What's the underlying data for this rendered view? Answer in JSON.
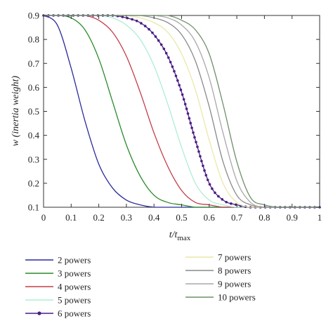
{
  "chart_data": {
    "type": "line",
    "title": "",
    "xlabel": {
      "main": "t/t",
      "sub": "max"
    },
    "ylabel": "w (inertia weight)",
    "xlim": [
      0,
      1
    ],
    "ylim": [
      0.1,
      0.9
    ],
    "x_ticks": [
      "0",
      "0.1",
      "0.2",
      "0.3",
      "0.4",
      "0.5",
      "0.6",
      "0.7",
      "0.8",
      "0.9",
      "1"
    ],
    "y_ticks": [
      "0.1",
      "0.2",
      "0.3",
      "0.4",
      "0.5",
      "0.6",
      "0.7",
      "0.8",
      "0.9"
    ],
    "grid": false,
    "legend_position": "bottom",
    "x": [
      0,
      0.05,
      0.1,
      0.15,
      0.2,
      0.25,
      0.3,
      0.35,
      0.4,
      0.45,
      0.5,
      0.55,
      0.6,
      0.65,
      0.7,
      0.75,
      0.8,
      0.85,
      0.9,
      0.95,
      1
    ],
    "series": [
      {
        "name": "2 powers",
        "color": "#2b2b9a",
        "marker": "none",
        "values": [
          0.9,
          0.86,
          0.68,
          0.46,
          0.28,
          0.18,
          0.13,
          0.11,
          0.1,
          0.1,
          0.1,
          0.1,
          0.1,
          0.1,
          0.1,
          0.1,
          0.1,
          0.1,
          0.1,
          0.1,
          0.1
        ]
      },
      {
        "name": "3 powers",
        "color": "#2a8a2a",
        "marker": "none",
        "values": [
          0.9,
          0.9,
          0.89,
          0.84,
          0.72,
          0.54,
          0.36,
          0.23,
          0.15,
          0.12,
          0.11,
          0.1,
          0.1,
          0.1,
          0.1,
          0.1,
          0.1,
          0.1,
          0.1,
          0.1,
          0.1
        ]
      },
      {
        "name": "4 powers",
        "color": "#c43c4a",
        "marker": "none",
        "values": [
          0.9,
          0.9,
          0.9,
          0.9,
          0.88,
          0.83,
          0.73,
          0.58,
          0.41,
          0.27,
          0.17,
          0.12,
          0.11,
          0.1,
          0.1,
          0.1,
          0.1,
          0.1,
          0.1,
          0.1,
          0.1
        ]
      },
      {
        "name": "5 powers",
        "color": "#aeeed2",
        "marker": "none",
        "values": [
          0.9,
          0.9,
          0.9,
          0.9,
          0.9,
          0.89,
          0.86,
          0.8,
          0.69,
          0.53,
          0.35,
          0.2,
          0.13,
          0.11,
          0.1,
          0.1,
          0.1,
          0.1,
          0.1,
          0.1,
          0.1
        ]
      },
      {
        "name": "6 powers",
        "color": "#4a1d85",
        "marker": "dot",
        "values": [
          0.9,
          0.9,
          0.9,
          0.9,
          0.9,
          0.9,
          0.89,
          0.87,
          0.82,
          0.73,
          0.58,
          0.38,
          0.2,
          0.13,
          0.11,
          0.1,
          0.1,
          0.1,
          0.1,
          0.1,
          0.1
        ]
      },
      {
        "name": "7 powers",
        "color": "#ece7a8",
        "marker": "none",
        "values": [
          0.9,
          0.9,
          0.9,
          0.9,
          0.9,
          0.9,
          0.9,
          0.89,
          0.87,
          0.83,
          0.74,
          0.59,
          0.38,
          0.2,
          0.12,
          0.1,
          0.1,
          0.1,
          0.1,
          0.1,
          0.1
        ]
      },
      {
        "name": "8 powers",
        "color": "#8a8a8a",
        "marker": "none",
        "values": [
          0.9,
          0.9,
          0.9,
          0.9,
          0.9,
          0.9,
          0.9,
          0.9,
          0.89,
          0.87,
          0.82,
          0.71,
          0.52,
          0.29,
          0.15,
          0.11,
          0.1,
          0.1,
          0.1,
          0.1,
          0.1
        ]
      },
      {
        "name": "9 powers",
        "color": "#a9a9a9",
        "marker": "none",
        "values": [
          0.9,
          0.9,
          0.9,
          0.9,
          0.9,
          0.9,
          0.9,
          0.9,
          0.9,
          0.89,
          0.86,
          0.79,
          0.64,
          0.41,
          0.21,
          0.12,
          0.1,
          0.1,
          0.1,
          0.1,
          0.1
        ]
      },
      {
        "name": "10 powers",
        "color": "#6f8f6a",
        "marker": "none",
        "values": [
          0.9,
          0.9,
          0.9,
          0.9,
          0.9,
          0.9,
          0.9,
          0.9,
          0.9,
          0.9,
          0.88,
          0.84,
          0.74,
          0.53,
          0.29,
          0.14,
          0.11,
          0.1,
          0.1,
          0.1,
          0.1
        ]
      }
    ]
  }
}
